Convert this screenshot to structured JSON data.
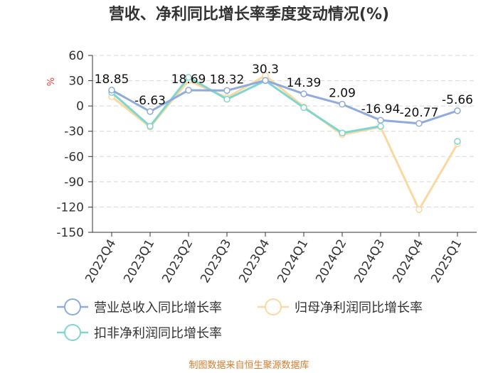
{
  "chart_data": {
    "type": "line",
    "title": "营收、净利同比增长率季度变动情况(%)",
    "ylabel": "%",
    "ylim": [
      -150,
      60
    ],
    "yticks": [
      60,
      30,
      0,
      -30,
      -60,
      -90,
      -120,
      -150
    ],
    "grid": true,
    "legend_position": "bottom",
    "categories": [
      "2022Q4",
      "2023Q1",
      "2023Q2",
      "2023Q3",
      "2023Q4",
      "2024Q1",
      "2024Q2",
      "2024Q3",
      "2024Q4",
      "2025Q1"
    ],
    "series": [
      {
        "name": "营业总收入同比增长率",
        "color": "#8faadc",
        "values": [
          18.85,
          -6.63,
          18.69,
          18.32,
          30.3,
          14.39,
          2.09,
          -16.94,
          -20.77,
          -5.66
        ],
        "labels": [
          "18.85",
          "-6.63",
          "18.69",
          "18.32",
          "30.3",
          "14.39",
          "2.09",
          "-16.94",
          "-20.77",
          "-5.66"
        ]
      },
      {
        "name": "归母净利润同比增长率",
        "color": "#f9d9a0",
        "values": [
          11,
          -25,
          30,
          10,
          36,
          -1,
          -34,
          -25,
          -123,
          -45
        ]
      },
      {
        "name": "扣非净利润同比增长率",
        "color": "#7fd6cf",
        "values": [
          16,
          -24,
          34,
          8,
          30,
          -2,
          -32,
          -24,
          null,
          -42
        ]
      }
    ]
  },
  "source": "制图数据来自恒生聚源数据库"
}
